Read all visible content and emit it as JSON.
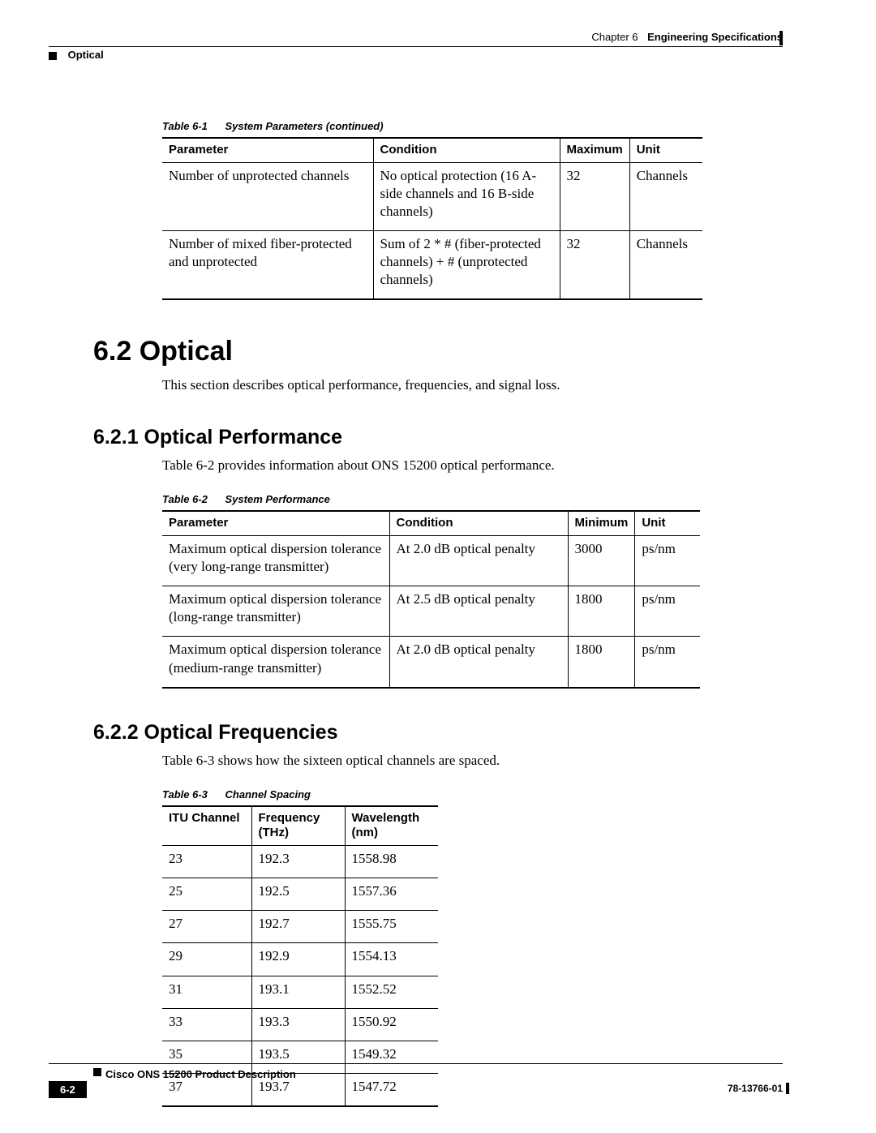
{
  "header": {
    "chapter_label": "Chapter 6",
    "chapter_title": "Engineering Specifications",
    "section_name": "Optical"
  },
  "table61": {
    "caption_num": "Table 6-1",
    "caption_title": "System Parameters (continued)",
    "columns": [
      "Parameter",
      "Condition",
      "Maximum",
      "Unit"
    ],
    "rows": [
      [
        "Number of unprotected channels",
        "No optical protection (16 A-side channels and 16 B-side channels)",
        "32",
        "Channels"
      ],
      [
        "Number of mixed fiber-protected and unprotected",
        "Sum of 2 * # (fiber-protected channels) + # (unprotected channels)",
        "32",
        "Channels"
      ]
    ]
  },
  "section": {
    "num_title": "6.2  Optical",
    "intro": "This section describes optical performance, frequencies, and signal loss."
  },
  "sub621": {
    "title": "6.2.1  Optical Performance",
    "intro": "Table 6-2 provides information about ONS 15200 optical performance."
  },
  "table62": {
    "caption_num": "Table 6-2",
    "caption_title": "System Performance",
    "columns": [
      "Parameter",
      "Condition",
      "Minimum",
      "Unit"
    ],
    "rows": [
      [
        "Maximum optical dispersion tolerance (very long-range transmitter)",
        "At 2.0 dB optical penalty",
        "3000",
        "ps/nm"
      ],
      [
        "Maximum optical dispersion tolerance (long-range transmitter)",
        "At 2.5 dB optical penalty",
        "1800",
        "ps/nm"
      ],
      [
        "Maximum optical dispersion tolerance (medium-range transmitter)",
        "At 2.0 dB optical penalty",
        "1800",
        "ps/nm"
      ]
    ]
  },
  "sub622": {
    "title": "6.2.2  Optical Frequencies",
    "intro": "Table 6-3 shows how the sixteen optical channels are spaced."
  },
  "table63": {
    "caption_num": "Table 6-3",
    "caption_title": "Channel Spacing",
    "columns": [
      "ITU Channel",
      "Frequency (THz)",
      "Wavelength (nm)"
    ],
    "col_line1": [
      "ITU Channel",
      "Frequency",
      "Wavelength"
    ],
    "col_line2": [
      "",
      "(THz)",
      "(nm)"
    ],
    "rows": [
      [
        "23",
        "192.3",
        "1558.98"
      ],
      [
        "25",
        "192.5",
        "1557.36"
      ],
      [
        "27",
        "192.7",
        "1555.75"
      ],
      [
        "29",
        "192.9",
        "1554.13"
      ],
      [
        "31",
        "193.1",
        "1552.52"
      ],
      [
        "33",
        "193.3",
        "1550.92"
      ],
      [
        "35",
        "193.5",
        "1549.32"
      ],
      [
        "37",
        "193.7",
        "1547.72"
      ]
    ]
  },
  "footer": {
    "doc_title": "Cisco ONS 15200 Product Description",
    "page_num": "6-2",
    "doc_num": "78-13766-01"
  }
}
